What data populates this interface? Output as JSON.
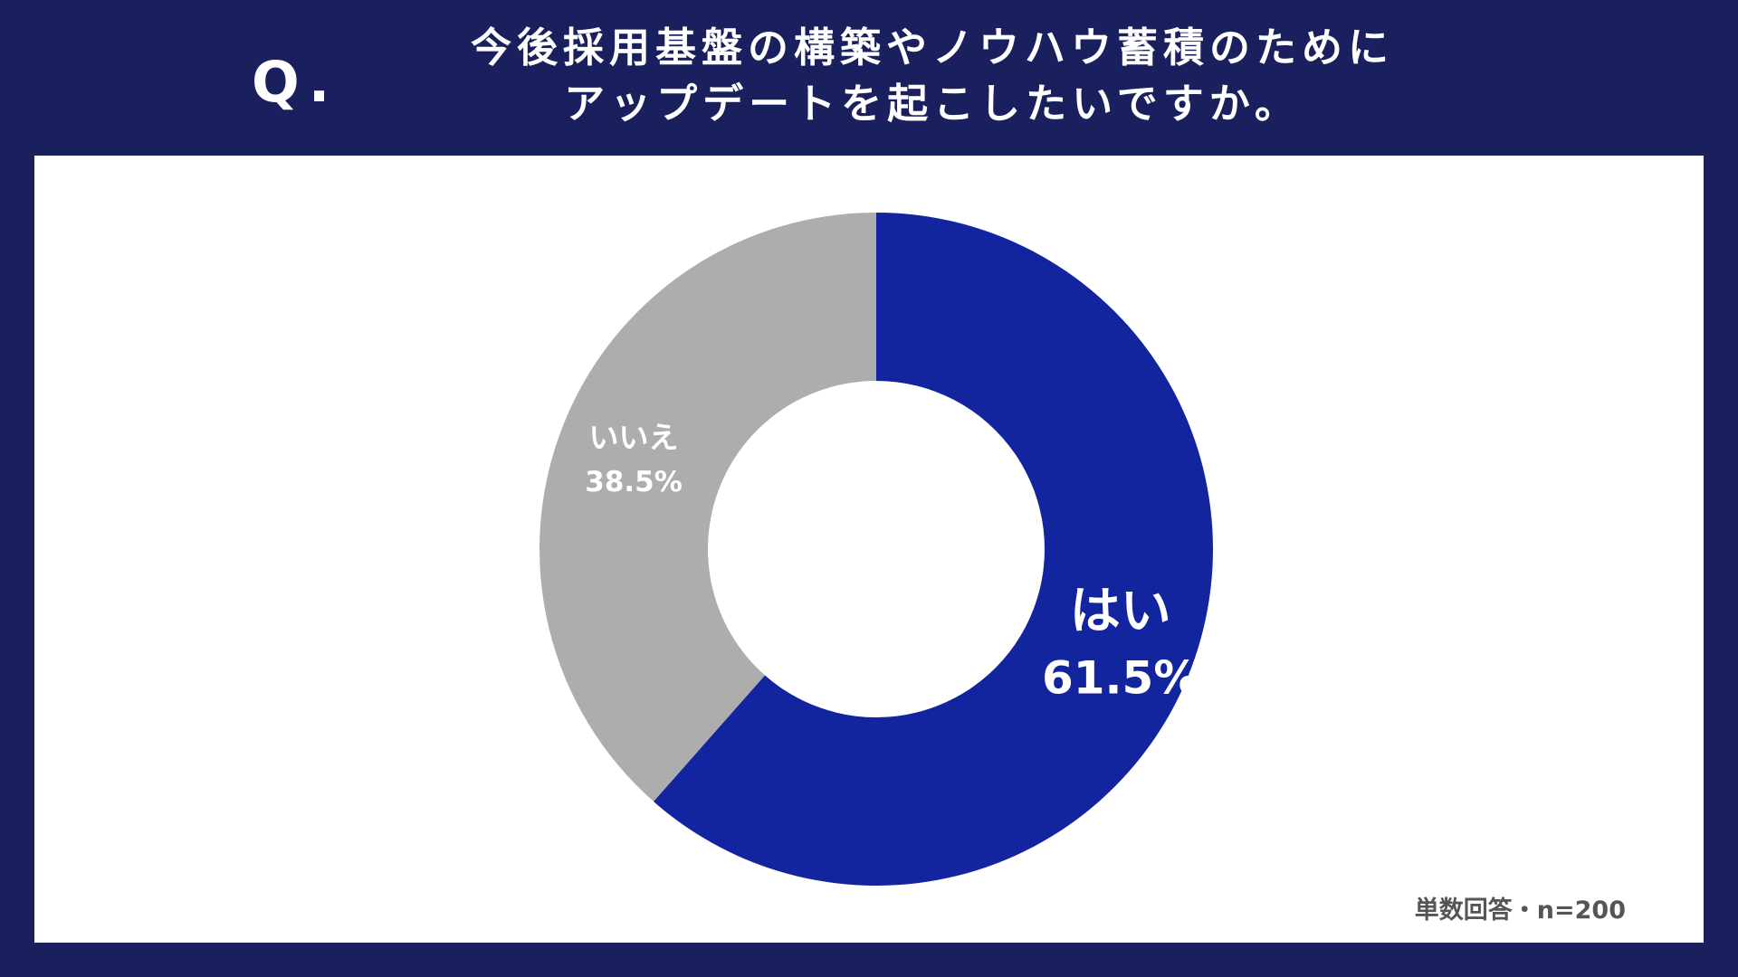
{
  "header": {
    "q_mark": "Q.",
    "title_lines": [
      "今後採用基盤の構築やノウハウ蓄積のために",
      "アップデートを起こしたいですか。"
    ]
  },
  "note": "単数回答・n=200",
  "colors": {
    "background": "#1a1f5e",
    "panel": "#ffffff",
    "yes": "#12259f",
    "no": "#adadad"
  },
  "chart_data": {
    "type": "pie",
    "donut": true,
    "categories": [
      "はい",
      "いいえ"
    ],
    "values": [
      61.5,
      38.5
    ],
    "value_labels": [
      "61.5%",
      "38.5%"
    ],
    "colors": [
      "#12259f",
      "#adadad"
    ],
    "start": "top",
    "direction": "clockwise",
    "legend": "none"
  }
}
